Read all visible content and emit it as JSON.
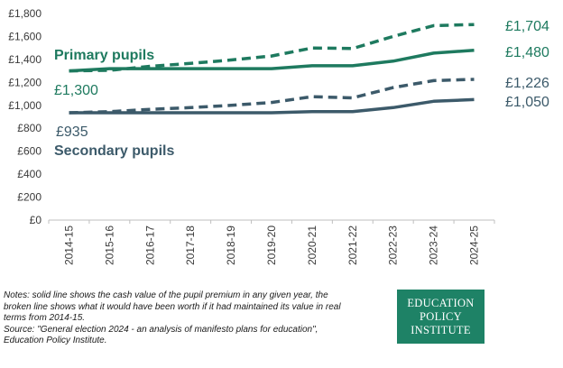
{
  "chart_data": {
    "type": "line",
    "title": "",
    "xlabel": "",
    "ylabel": "",
    "ylim": [
      0,
      1800
    ],
    "yticks": [
      "£0",
      "£200",
      "£400",
      "£600",
      "£800",
      "£1,000",
      "£1,200",
      "£1,400",
      "£1,600",
      "£1,800"
    ],
    "yticks_values": [
      0,
      200,
      400,
      600,
      800,
      1000,
      1200,
      1400,
      1600,
      1800
    ],
    "categories": [
      "2014-15",
      "2015-16",
      "2016-17",
      "2017-18",
      "2018-19",
      "2019-20",
      "2020-21",
      "2021-22",
      "2022-23",
      "2023-24",
      "2024-25"
    ],
    "grid": false,
    "series": [
      {
        "name": "Primary pupils (cash)",
        "style": "solid",
        "color": "#1e7a5f",
        "values": [
          1300,
          1320,
          1320,
          1320,
          1320,
          1320,
          1345,
          1345,
          1385,
          1455,
          1480
        ]
      },
      {
        "name": "Primary pupils (real terms)",
        "style": "dashed",
        "color": "#1e7a5f",
        "values": [
          1300,
          1305,
          1340,
          1365,
          1395,
          1430,
          1500,
          1495,
          1600,
          1695,
          1704
        ]
      },
      {
        "name": "Secondary pupils (cash)",
        "style": "solid",
        "color": "#3c5a6a",
        "values": [
          935,
          935,
          935,
          935,
          935,
          935,
          945,
          945,
          980,
          1035,
          1050
        ]
      },
      {
        "name": "Secondary pupils (real terms)",
        "style": "dashed",
        "color": "#3c5a6a",
        "values": [
          935,
          945,
          965,
          980,
          1000,
          1025,
          1075,
          1065,
          1155,
          1215,
          1226
        ]
      }
    ],
    "annotations": {
      "primary_title": "Primary pupils",
      "secondary_title": "Secondary pupils",
      "primary_start": "£1,300",
      "secondary_start": "£935",
      "primary_real_end": "£1,704",
      "primary_cash_end": "£1,480",
      "secondary_real_end": "£1,226",
      "secondary_cash_end": "£1,050"
    }
  },
  "notes": {
    "line1": "Notes: solid line shows the cash value of the pupil premium in any given year, the",
    "line2": "broken line shows what it would have been worth if it had maintained its value in real",
    "line3": "terms from 2014-15.",
    "line4": "Source: \"General election 2024 - an analysis of manifesto plans for education\",",
    "line5": "Education Policy Institute."
  },
  "logo": {
    "line1": "EDUCATION",
    "line2": "POLICY",
    "line3": "INSTITUTE"
  },
  "colors": {
    "primary": "#1e7a5f",
    "secondary": "#3c5a6a",
    "logo_bg": "#1e8266"
  }
}
